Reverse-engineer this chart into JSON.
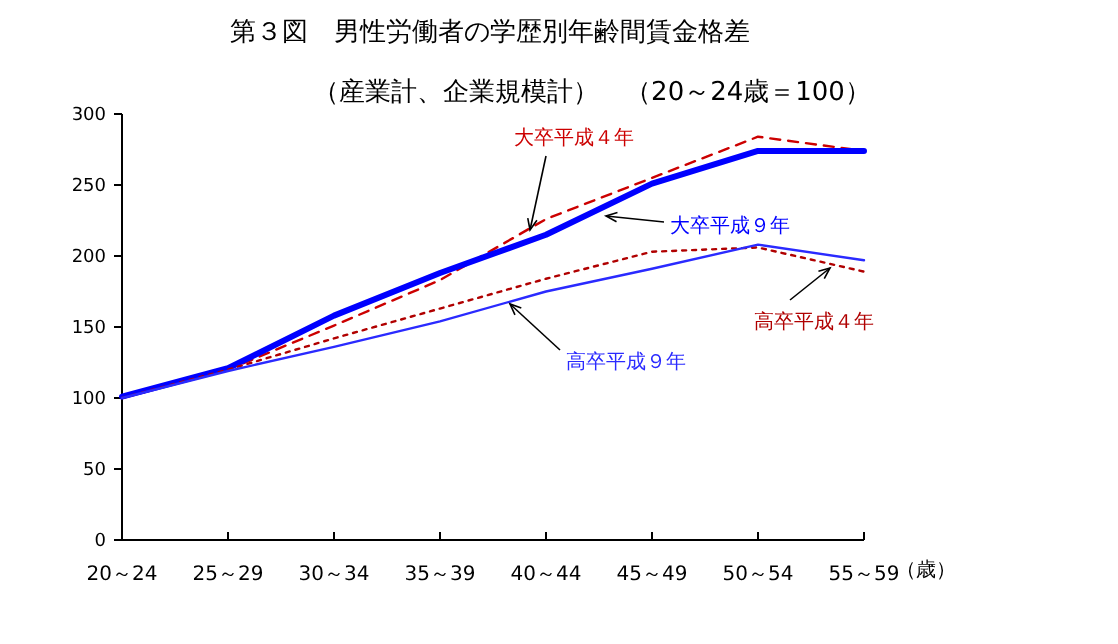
{
  "chart_data": {
    "type": "line",
    "title": "第３図　男性労働者の学歴別年齢間賃金格差",
    "subtitle": "（産業計、企業規模計）　（20～24歳＝100）",
    "xlabel": "（歳）",
    "categories": [
      "20～24",
      "25～29",
      "30～34",
      "35～39",
      "40～44",
      "45～49",
      "50～54",
      "55～59"
    ],
    "ylim": [
      0,
      300
    ],
    "yticks": [
      0,
      50,
      100,
      150,
      200,
      250,
      300
    ],
    "grid": false,
    "legend": false,
    "marker": "none",
    "series": [
      {
        "name": "大卒平成４年",
        "color": "#cc0000",
        "line_style": "dashed",
        "values": [
          100,
          120,
          151,
          183,
          226,
          255,
          284,
          274
        ]
      },
      {
        "name": "大卒平成９年",
        "color": "#0000ff",
        "line_style": "solid",
        "values": [
          101,
          121,
          158,
          188,
          215,
          251,
          274,
          274
        ]
      },
      {
        "name": "高卒平成４年",
        "color": "#b00000",
        "line_style": "dotted",
        "values": [
          100,
          120,
          142,
          163,
          184,
          203,
          206,
          189
        ]
      },
      {
        "name": "高卒平成９年",
        "color": "#2a2aff",
        "line_style": "solid",
        "values": [
          100,
          119,
          136,
          154,
          175,
          191,
          208,
          197
        ]
      }
    ]
  }
}
